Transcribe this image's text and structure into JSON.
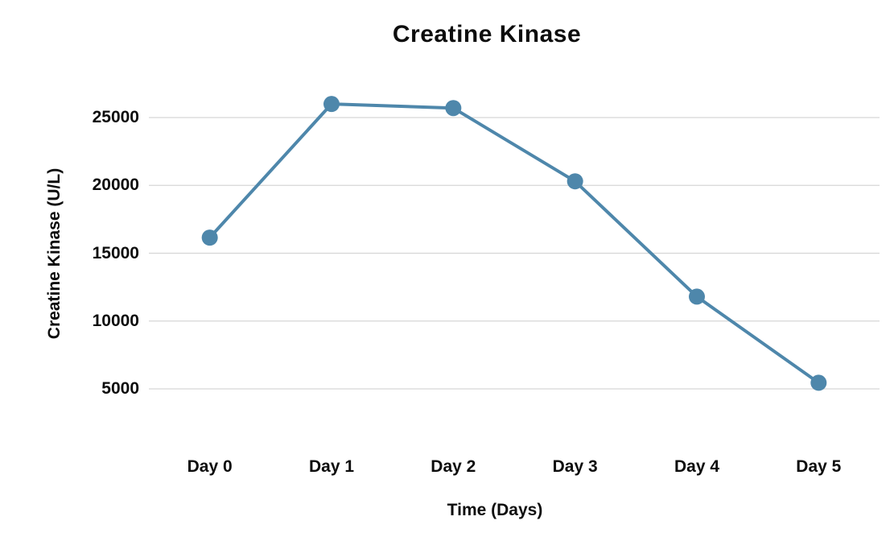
{
  "chart_data": {
    "type": "line",
    "title": "Creatine Kinase",
    "xlabel": "Time (Days)",
    "ylabel": "Creatine Kinase (U/L)",
    "categories": [
      "Day 0",
      "Day 1",
      "Day 2",
      "Day 3",
      "Day 4",
      "Day 5"
    ],
    "series": [
      {
        "name": "Creatine Kinase (U/L)",
        "values": [
          16150,
          26000,
          25700,
          20300,
          11800,
          5450
        ]
      }
    ],
    "yticks": [
      25000,
      20000,
      15000,
      10000,
      5000
    ],
    "ylim": [
      4500,
      27500
    ],
    "grid": "horizontal-only",
    "legend": "none",
    "marker": "circle"
  },
  "colors": {
    "line": "#4e87ab",
    "grid": "#d6d6d6",
    "text": "#0d0d0d",
    "background": "#ffffff"
  }
}
